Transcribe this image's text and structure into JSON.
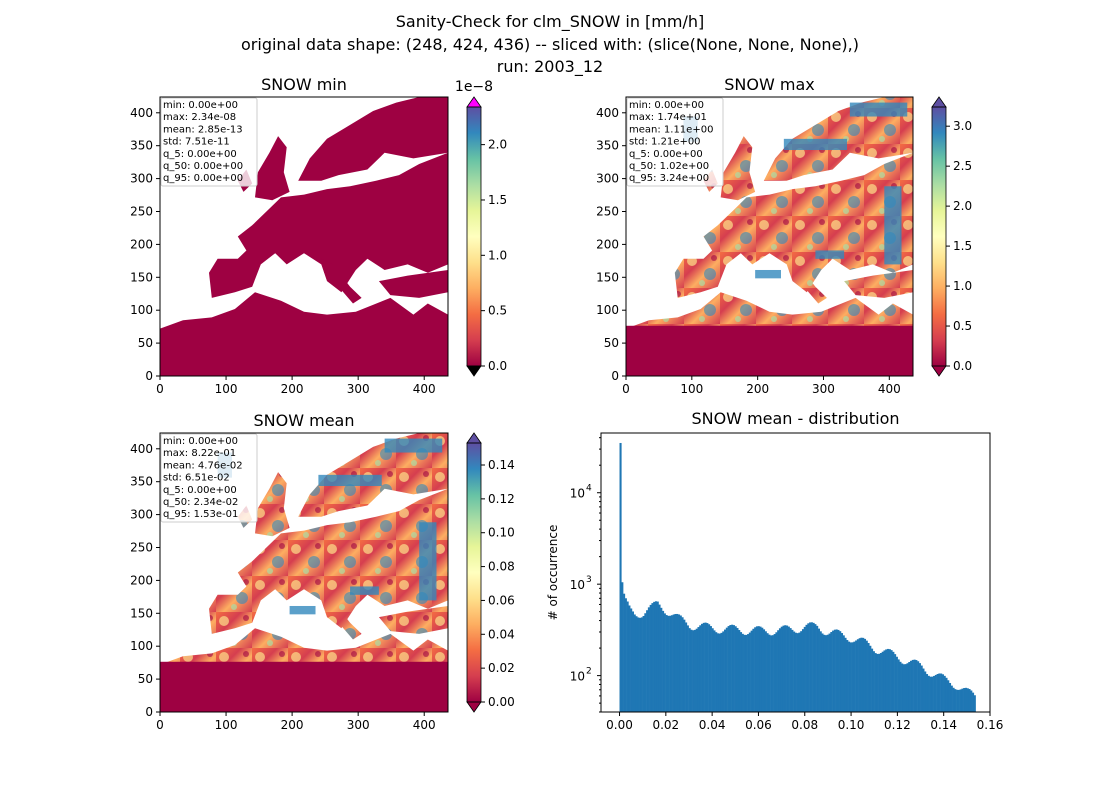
{
  "suptitle": {
    "line1": "Sanity-Check for clm_SNOW in [mm/h]",
    "line2": "original data shape: (248, 424, 436) -- sliced with: (slice(None, None, None),)",
    "line3": "run: 2003_12"
  },
  "maps": [
    {
      "title": "SNOW min",
      "stats": [
        "min: 0.00e+00",
        "max: 2.34e-08",
        "mean: 2.85e-13",
        "std: 7.51e-11",
        "q_5: 0.00e+00",
        "q_50: 0.00e+00",
        "q_95: 0.00e+00"
      ],
      "colorbar": {
        "ticks": [
          "0.0",
          "0.5",
          "1.0",
          "1.5",
          "2.0"
        ],
        "tick_values": [
          0,
          0.5,
          1.0,
          1.5,
          2.0
        ],
        "vmax": 2.34,
        "offset": "1e−8",
        "extend": "both",
        "over_color": "#ff00ff"
      },
      "fill": "uniform"
    },
    {
      "title": "SNOW max",
      "stats": [
        "min: 0.00e+00",
        "max: 1.74e+01",
        "mean: 1.11e+00",
        "std: 1.21e+00",
        "q_5: 0.00e+00",
        "q_50: 1.02e+00",
        "q_95: 3.24e+00"
      ],
      "colorbar": {
        "ticks": [
          "0.0",
          "0.5",
          "1.0",
          "1.5",
          "2.0",
          "2.5",
          "3.0"
        ],
        "tick_values": [
          0,
          0.5,
          1.0,
          1.5,
          2.0,
          2.5,
          3.0
        ],
        "vmax": 3.24,
        "offset": "",
        "extend": "both",
        "over_color": ""
      },
      "fill": "field"
    },
    {
      "title": "SNOW mean",
      "stats": [
        "min: 0.00e+00",
        "max: 8.22e-01",
        "mean: 4.76e-02",
        "std: 6.51e-02",
        "q_5: 0.00e+00",
        "q_50: 2.34e-02",
        "q_95: 1.53e-01"
      ],
      "colorbar": {
        "ticks": [
          "0.00",
          "0.02",
          "0.04",
          "0.06",
          "0.08",
          "0.10",
          "0.12",
          "0.14"
        ],
        "tick_values": [
          0,
          0.02,
          0.04,
          0.06,
          0.08,
          0.1,
          0.12,
          0.14
        ],
        "vmax": 0.153,
        "offset": "",
        "extend": "both",
        "over_color": ""
      },
      "fill": "field"
    }
  ],
  "map_axes": {
    "x_ticks": [
      "0",
      "100",
      "200",
      "300",
      "400"
    ],
    "x_tick_values": [
      0,
      100,
      200,
      300,
      400
    ],
    "y_ticks": [
      "0",
      "50",
      "100",
      "150",
      "200",
      "250",
      "300",
      "350",
      "400"
    ],
    "y_tick_values": [
      0,
      50,
      100,
      150,
      200,
      250,
      300,
      350,
      400
    ],
    "xlim": [
      0,
      436
    ],
    "ylim": [
      0,
      424
    ]
  },
  "colors": {
    "cmap": [
      "#9e0142",
      "#d53e4f",
      "#f46d43",
      "#fdae61",
      "#fee08b",
      "#ffffbf",
      "#e6f598",
      "#abdda4",
      "#66c2a5",
      "#3288bd",
      "#5e4fa2"
    ],
    "bar_fill": "#1f77b4"
  },
  "chart_data": {
    "type": "bar",
    "title": "SNOW mean - distribution",
    "xlabel": "",
    "ylabel": "# of occurrence",
    "yscale": "log",
    "xlim": [
      -0.008,
      0.16
    ],
    "ylim": [
      40,
      45000
    ],
    "x_ticks": [
      "0.00",
      "0.02",
      "0.04",
      "0.06",
      "0.08",
      "0.10",
      "0.12",
      "0.14",
      "0.16"
    ],
    "x_tick_values": [
      0,
      0.02,
      0.04,
      0.06,
      0.08,
      0.1,
      0.12,
      0.14,
      0.16
    ],
    "y_ticks": [
      "10",
      "10",
      "10"
    ],
    "y_tick_exponents": [
      "2",
      "3",
      "4"
    ],
    "y_tick_values": [
      100,
      1000,
      10000
    ],
    "bin_width": 0.000765,
    "bin_start": 0.0,
    "counts_profile": [
      [
        0.0,
        35000
      ],
      [
        0.0008,
        850
      ],
      [
        0.002,
        650
      ],
      [
        0.004,
        520
      ],
      [
        0.006,
        480
      ],
      [
        0.01,
        490
      ],
      [
        0.014,
        560
      ],
      [
        0.016,
        610
      ],
      [
        0.02,
        520
      ],
      [
        0.025,
        420
      ],
      [
        0.03,
        360
      ],
      [
        0.04,
        330
      ],
      [
        0.05,
        320
      ],
      [
        0.06,
        310
      ],
      [
        0.07,
        315
      ],
      [
        0.08,
        340
      ],
      [
        0.085,
        345
      ],
      [
        0.09,
        300
      ],
      [
        0.1,
        260
      ],
      [
        0.105,
        230
      ],
      [
        0.11,
        200
      ],
      [
        0.12,
        160
      ],
      [
        0.13,
        125
      ],
      [
        0.14,
        90
      ],
      [
        0.145,
        80
      ],
      [
        0.15,
        65
      ],
      [
        0.153,
        60
      ]
    ]
  }
}
